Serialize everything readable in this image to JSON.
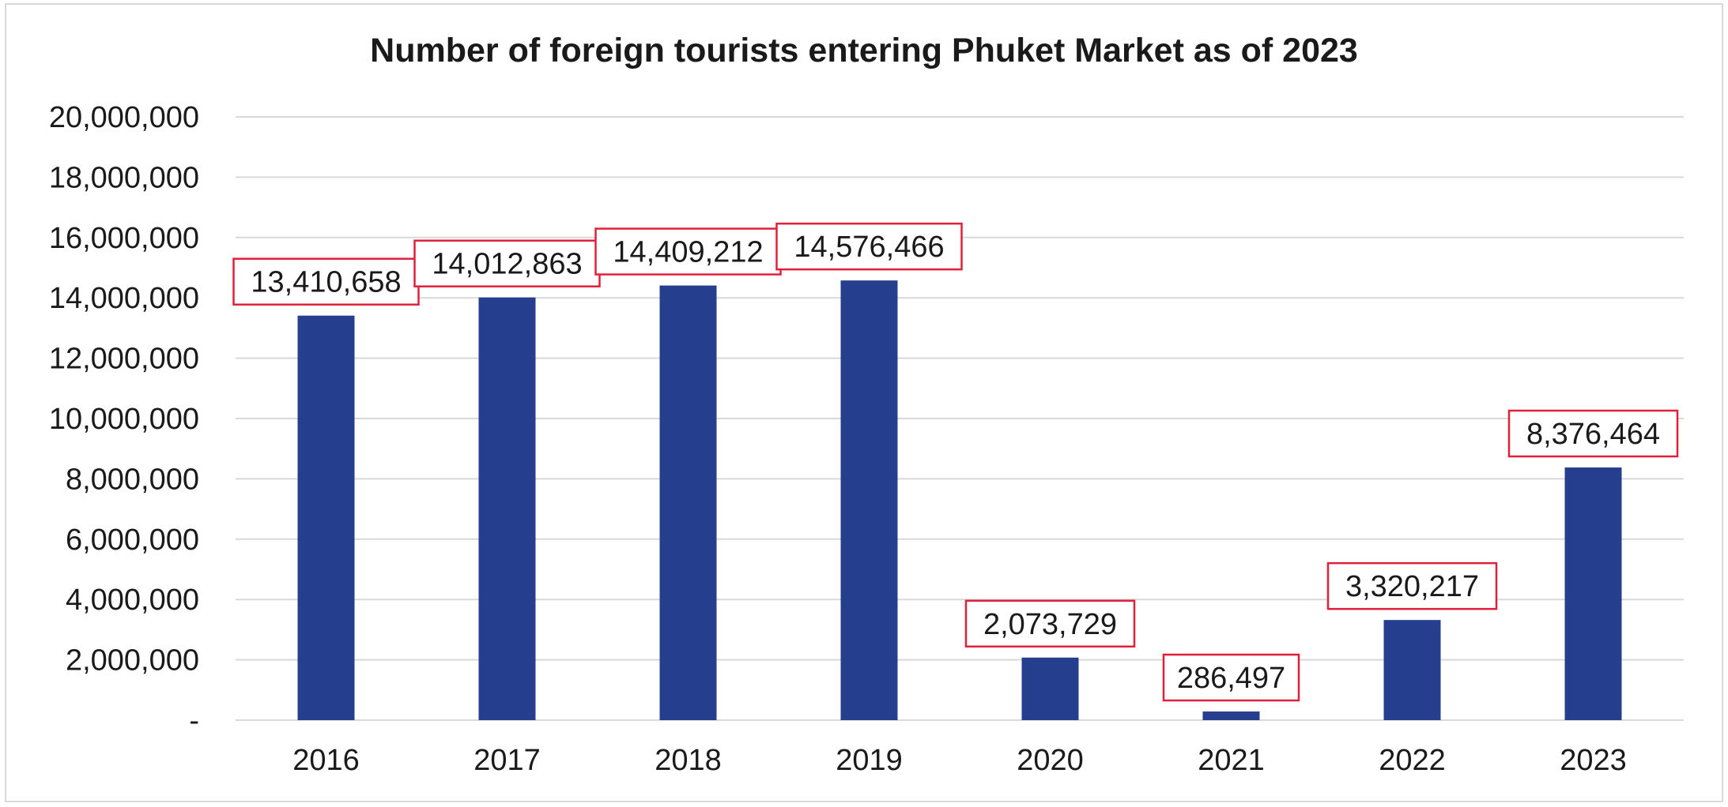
{
  "chart_data": {
    "type": "bar",
    "title": "Number of foreign tourists entering Phuket Market as of 2023",
    "xlabel": "",
    "ylabel": "",
    "categories": [
      "2016",
      "2017",
      "2018",
      "2019",
      "2020",
      "2021",
      "2022",
      "2023"
    ],
    "values": [
      13410658,
      14012863,
      14409212,
      14576466,
      2073729,
      286497,
      3320217,
      8376464
    ],
    "data_labels": [
      "13,410,658",
      "14,012,863",
      "14,409,212",
      "14,576,466",
      "2,073,729",
      "286,497",
      "3,320,217",
      "8,376,464"
    ],
    "ylim": [
      0,
      20000000
    ],
    "y_ticks": [
      0,
      2000000,
      4000000,
      6000000,
      8000000,
      10000000,
      12000000,
      14000000,
      16000000,
      18000000,
      20000000
    ],
    "y_tick_labels": [
      "-",
      "2,000,000",
      "4,000,000",
      "6,000,000",
      "8,000,000",
      "10,000,000",
      "12,000,000",
      "14,000,000",
      "16,000,000",
      "18,000,000",
      "20,000,000"
    ],
    "grid": true,
    "legend": "none",
    "colors": {
      "bar": "#253f8e",
      "label_border": "#e0203a",
      "grid": "#d9d9d9",
      "text": "#1a1a1a"
    }
  }
}
